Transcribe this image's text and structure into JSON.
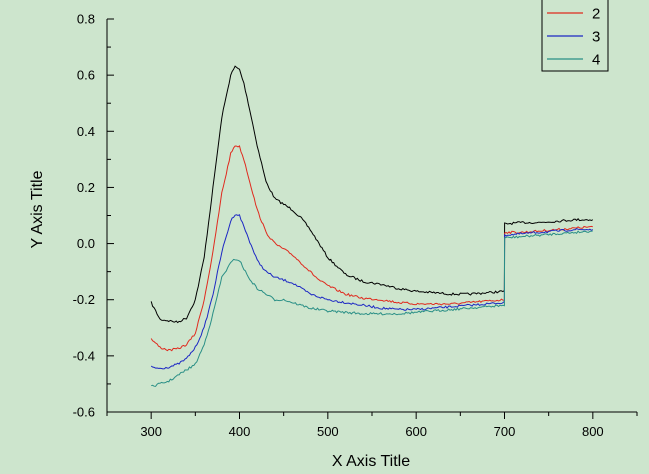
{
  "chart_data": {
    "type": "line",
    "title": "",
    "xlabel": "X Axis Title",
    "ylabel": "Y Axis Title",
    "xlim": [
      250,
      850
    ],
    "ylim": [
      -0.6,
      0.8
    ],
    "xticks": [
      300,
      400,
      500,
      600,
      700,
      800
    ],
    "yticks": [
      -0.6,
      -0.4,
      -0.2,
      0.0,
      0.2,
      0.4,
      0.6,
      0.8
    ],
    "xtick_labels": [
      "300",
      "400",
      "500",
      "600",
      "700",
      "800"
    ],
    "ytick_labels": [
      "-0.6",
      "-0.4",
      "-0.2",
      "0.0",
      "0.2",
      "0.4",
      "0.6",
      "0.8"
    ],
    "grid": false,
    "legend_position": "top-right",
    "legend": [
      "2",
      "3",
      "4"
    ],
    "background": "#cde5cd",
    "series": [
      {
        "color": "#000000",
        "x": [
          300,
          310,
          320,
          330,
          340,
          350,
          360,
          370,
          380,
          390,
          395,
          400,
          405,
          410,
          420,
          430,
          440,
          450,
          460,
          470,
          480,
          490,
          500,
          520,
          540,
          560,
          580,
          600,
          620,
          640,
          660,
          680,
          699.9,
          700.1,
          720,
          740,
          760,
          780,
          800
        ],
        "y": [
          -0.21,
          -0.27,
          -0.275,
          -0.28,
          -0.265,
          -0.2,
          -0.05,
          0.2,
          0.45,
          0.6,
          0.63,
          0.62,
          0.57,
          0.5,
          0.35,
          0.22,
          0.16,
          0.14,
          0.12,
          0.09,
          0.05,
          0.0,
          -0.05,
          -0.11,
          -0.135,
          -0.145,
          -0.16,
          -0.17,
          -0.175,
          -0.18,
          -0.18,
          -0.175,
          -0.17,
          0.07,
          0.075,
          0.075,
          0.08,
          0.085,
          0.085
        ]
      },
      {
        "name": "2",
        "color": "#e02a1e",
        "x": [
          300,
          310,
          320,
          330,
          340,
          350,
          360,
          370,
          380,
          390,
          395,
          400,
          405,
          410,
          420,
          430,
          440,
          450,
          460,
          470,
          480,
          490,
          500,
          520,
          540,
          560,
          580,
          600,
          620,
          640,
          660,
          680,
          699.9,
          700.1,
          720,
          740,
          760,
          780,
          800
        ],
        "y": [
          -0.34,
          -0.37,
          -0.38,
          -0.375,
          -0.36,
          -0.32,
          -0.2,
          -0.03,
          0.18,
          0.32,
          0.35,
          0.345,
          0.3,
          0.24,
          0.12,
          0.04,
          0.0,
          -0.02,
          -0.04,
          -0.07,
          -0.1,
          -0.13,
          -0.15,
          -0.18,
          -0.195,
          -0.2,
          -0.21,
          -0.215,
          -0.215,
          -0.215,
          -0.21,
          -0.205,
          -0.2,
          0.04,
          0.04,
          0.045,
          0.05,
          0.055,
          0.06
        ]
      },
      {
        "name": "3",
        "color": "#1c27c4",
        "x": [
          300,
          310,
          320,
          330,
          340,
          350,
          360,
          370,
          380,
          390,
          395,
          400,
          405,
          410,
          420,
          430,
          440,
          450,
          460,
          470,
          480,
          490,
          500,
          520,
          540,
          560,
          580,
          600,
          620,
          640,
          660,
          680,
          699.9,
          700.1,
          720,
          740,
          760,
          780,
          800
        ],
        "y": [
          -0.44,
          -0.445,
          -0.44,
          -0.43,
          -0.41,
          -0.37,
          -0.3,
          -0.18,
          -0.03,
          0.08,
          0.105,
          0.1,
          0.06,
          0.02,
          -0.06,
          -0.1,
          -0.12,
          -0.13,
          -0.14,
          -0.16,
          -0.18,
          -0.19,
          -0.2,
          -0.21,
          -0.22,
          -0.23,
          -0.235,
          -0.235,
          -0.23,
          -0.225,
          -0.22,
          -0.215,
          -0.21,
          0.03,
          0.035,
          0.04,
          0.045,
          0.05,
          0.05
        ]
      },
      {
        "name": "4",
        "color": "#2a8f86",
        "x": [
          300,
          310,
          320,
          330,
          340,
          350,
          360,
          370,
          380,
          390,
          395,
          400,
          405,
          410,
          420,
          430,
          440,
          450,
          460,
          470,
          480,
          490,
          500,
          520,
          540,
          560,
          580,
          600,
          620,
          640,
          660,
          680,
          699.9,
          700.1,
          720,
          740,
          760,
          780,
          800
        ],
        "y": [
          -0.51,
          -0.5,
          -0.49,
          -0.47,
          -0.45,
          -0.43,
          -0.36,
          -0.25,
          -0.12,
          -0.07,
          -0.055,
          -0.06,
          -0.09,
          -0.12,
          -0.16,
          -0.18,
          -0.2,
          -0.2,
          -0.21,
          -0.22,
          -0.23,
          -0.235,
          -0.24,
          -0.245,
          -0.25,
          -0.25,
          -0.25,
          -0.245,
          -0.24,
          -0.235,
          -0.23,
          -0.225,
          -0.22,
          0.02,
          0.025,
          0.03,
          0.035,
          0.04,
          0.045
        ]
      }
    ]
  }
}
